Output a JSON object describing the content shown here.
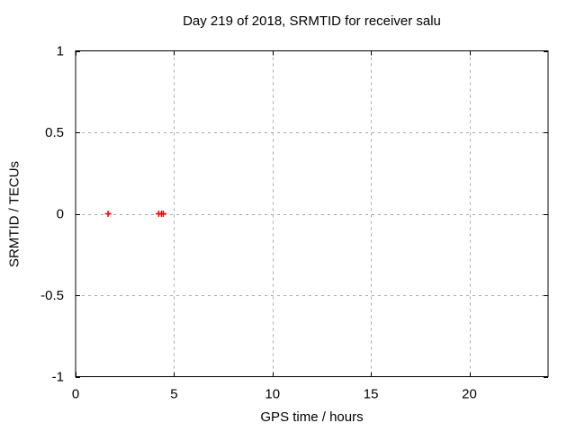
{
  "chart_data": {
    "type": "scatter",
    "title": "Day 219 of 2018, SRMTID for receiver salu",
    "xlabel": "GPS time / hours",
    "ylabel": "SRMTID / TECUs",
    "xlim": [
      0,
      24
    ],
    "ylim": [
      -1,
      1
    ],
    "xticks": [
      0,
      5,
      10,
      15,
      20
    ],
    "xtick_labels": [
      "0",
      "5",
      "10",
      "15",
      "20"
    ],
    "yticks": [
      -1,
      -0.5,
      0,
      0.5,
      1
    ],
    "ytick_labels": [
      "-1",
      "-0.5",
      "0",
      "0.5",
      "1"
    ],
    "grid": true,
    "legend": "none",
    "marker": "plus",
    "marker_color": "#ff0000",
    "colors": {
      "axis": "#000000",
      "grid": "#a8a8a8",
      "background": "#ffffff",
      "text": "#000000"
    },
    "series": [
      {
        "name": "SRMTID",
        "points": [
          {
            "x": 1.65,
            "y": 0.0
          },
          {
            "x": 4.22,
            "y": 0.0
          },
          {
            "x": 4.36,
            "y": 0.0
          },
          {
            "x": 4.45,
            "y": 0.0
          }
        ]
      }
    ]
  }
}
